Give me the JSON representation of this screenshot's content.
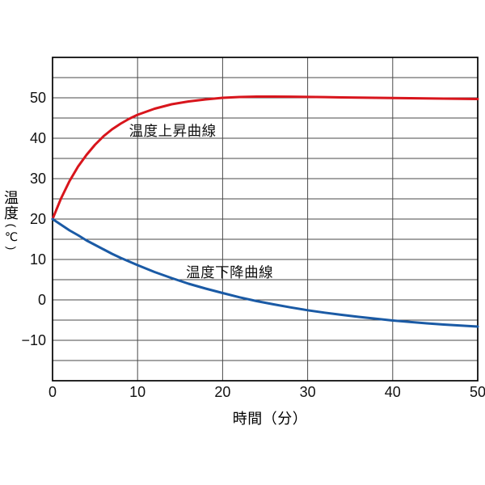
{
  "figure": {
    "background": "#ffffff"
  },
  "chart_data": {
    "type": "line",
    "title": "",
    "xlabel": "時間（分）",
    "ylabel": "温度(℃)",
    "ylabel_parts": {
      "char1": "温",
      "char2": "度",
      "open": "(",
      "unit": "℃",
      "close": ")"
    },
    "xlim": [
      0,
      50
    ],
    "ylim": [
      -20,
      60
    ],
    "x_ticks": [
      0,
      10,
      20,
      30,
      40,
      50
    ],
    "y_ticks": [
      50,
      40,
      30,
      20,
      10,
      0,
      -10
    ],
    "y_tick_labels": [
      "50",
      "40",
      "30",
      "20",
      "10",
      "0",
      "−10"
    ],
    "grid": {
      "on": true,
      "x_step": 10,
      "y_step": 5,
      "color": "#4a4a4a",
      "border_color": "#000000"
    },
    "legend_position": "none",
    "x": [
      0,
      1,
      2,
      3,
      4,
      5,
      6,
      7,
      8,
      9,
      10,
      12,
      14,
      16,
      18,
      20,
      22,
      24,
      26,
      28,
      30,
      32,
      34,
      36,
      38,
      40,
      42,
      44,
      46,
      48,
      50
    ],
    "series": [
      {
        "name": "温度上昇曲線",
        "color": "#d8151c",
        "values": [
          20,
          25.1,
          29.4,
          33.0,
          35.9,
          38.4,
          40.5,
          42.2,
          43.6,
          44.8,
          45.8,
          47.3,
          48.4,
          49.1,
          49.6,
          50.0,
          50.2,
          50.3,
          50.3,
          50.27,
          50.22,
          50.17,
          50.1,
          50.05,
          50.0,
          49.95,
          49.9,
          49.85,
          49.8,
          49.75,
          49.7
        ]
      },
      {
        "name": "温度下降曲線",
        "color": "#1a5aa5",
        "values": [
          20,
          18.6,
          17.2,
          16.0,
          14.7,
          13.6,
          12.5,
          11.4,
          10.4,
          9.5,
          8.6,
          6.9,
          5.4,
          4.0,
          2.8,
          1.7,
          0.65,
          -0.3,
          -1.1,
          -1.85,
          -2.55,
          -3.15,
          -3.7,
          -4.2,
          -4.65,
          -5.1,
          -5.45,
          -5.8,
          -6.1,
          -6.35,
          -6.6
        ]
      }
    ],
    "annotations": [
      {
        "text": "温度上昇曲線",
        "t": 9.0,
        "temp": 42.2
      },
      {
        "text": "温度下降曲線",
        "t": 15.7,
        "temp": 7.3
      }
    ]
  }
}
